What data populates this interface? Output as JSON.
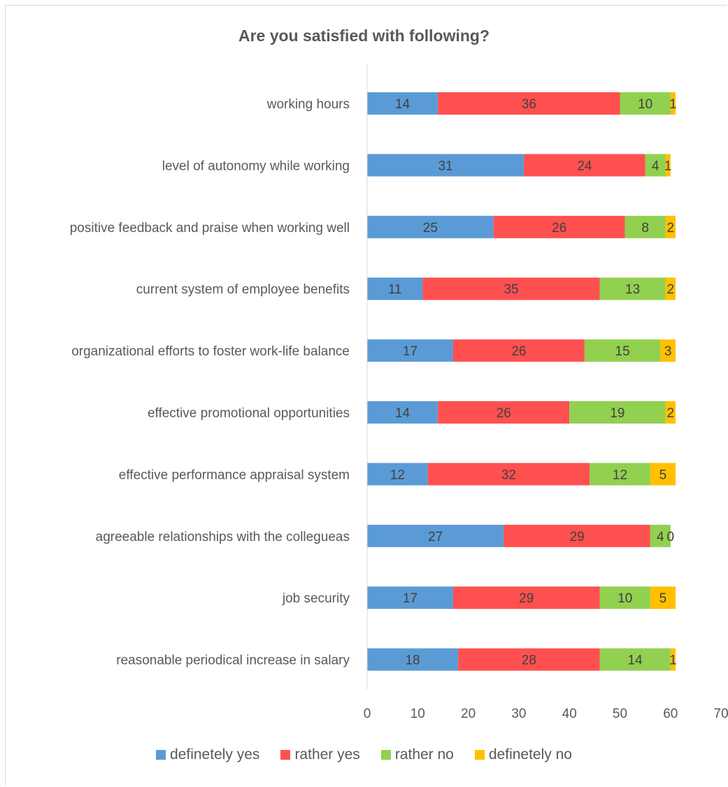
{
  "chart_data": {
    "type": "bar",
    "orientation": "horizontal",
    "stacked": true,
    "title": "Are you satisfied with following?",
    "categories": [
      "working hours",
      "level of autonomy while working",
      "positive feedback and praise when working well",
      "current system of employee benefits",
      "organizational efforts to foster work-life balance",
      "effective promotional opportunities",
      "effective performance appraisal system",
      "agreeable relationships with the collegueas",
      "job security",
      "reasonable periodical increase in salary"
    ],
    "series": [
      {
        "name": "definetely yes",
        "color": "#5b9bd5",
        "values": [
          14,
          31,
          25,
          11,
          17,
          14,
          12,
          27,
          17,
          18
        ]
      },
      {
        "name": "rather yes",
        "color": "#ff5050",
        "values": [
          36,
          24,
          26,
          35,
          26,
          26,
          32,
          29,
          29,
          28
        ]
      },
      {
        "name": "rather no",
        "color": "#92d050",
        "values": [
          10,
          4,
          8,
          13,
          15,
          19,
          12,
          4,
          10,
          14
        ]
      },
      {
        "name": "definetely no",
        "color": "#ffc000",
        "values": [
          1,
          1,
          2,
          2,
          3,
          2,
          5,
          0,
          5,
          1
        ]
      }
    ],
    "xlim": [
      0,
      70
    ],
    "xticks": [
      "0",
      "10",
      "20",
      "30",
      "40",
      "50",
      "60",
      "70"
    ],
    "data_labels": true,
    "grid": false,
    "legend_position": "bottom"
  }
}
